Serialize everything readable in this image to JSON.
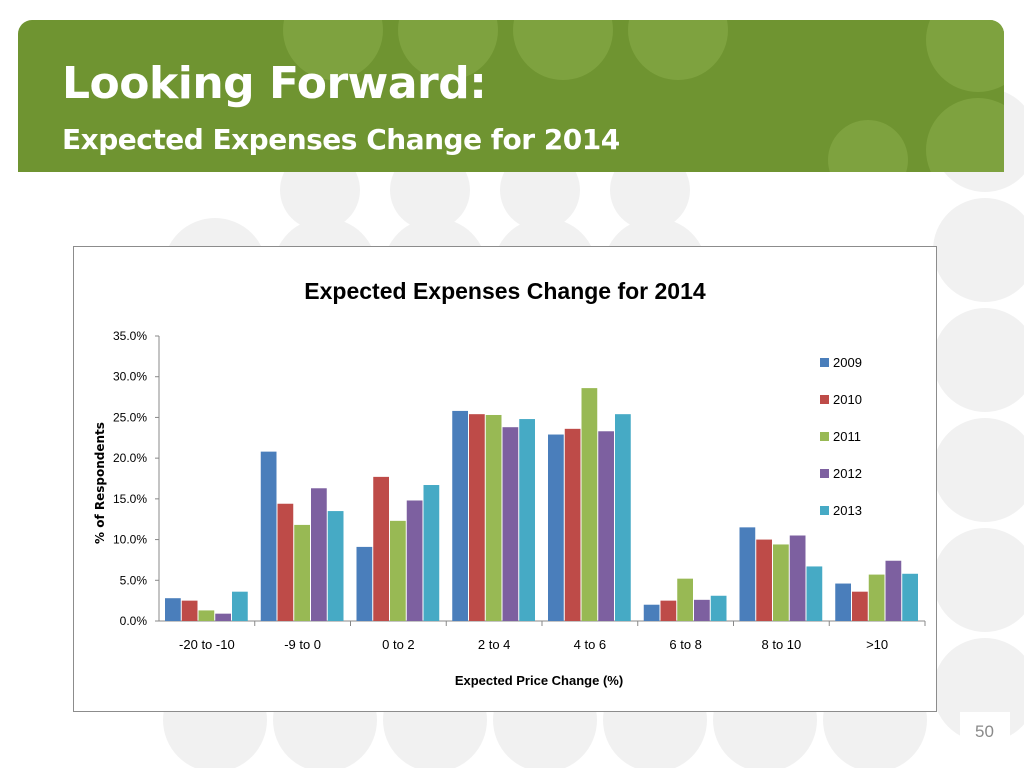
{
  "slide": {
    "title": "Looking Forward:",
    "subtitle": "Expected Expenses Change for 2014",
    "page_number": "50"
  },
  "colors": {
    "banner": "#6f9431",
    "series": [
      "#4a7ebb",
      "#be4b48",
      "#98b954",
      "#7d60a0",
      "#46aac5"
    ]
  },
  "chart_data": {
    "type": "bar",
    "title": "Expected Expenses Change for 2014",
    "xlabel": "Expected Price Change (%)",
    "ylabel": "% of Respondents",
    "categories": [
      "-20 to -10",
      "-9 to 0",
      "0 to 2",
      "2 to 4",
      "4 to 6",
      "6 to 8",
      "8 to 10",
      ">10"
    ],
    "ylim": [
      0,
      35
    ],
    "yticks": [
      "0.0%",
      "5.0%",
      "10.0%",
      "15.0%",
      "20.0%",
      "25.0%",
      "30.0%",
      "35.0%"
    ],
    "grid": false,
    "legend_position": "right",
    "series": [
      {
        "name": "2009",
        "values": [
          2.8,
          20.8,
          9.1,
          25.8,
          22.9,
          2.0,
          11.5,
          4.6
        ]
      },
      {
        "name": "2010",
        "values": [
          2.5,
          14.4,
          17.7,
          25.4,
          23.6,
          2.5,
          10.0,
          3.6
        ]
      },
      {
        "name": "2011",
        "values": [
          1.3,
          11.8,
          12.3,
          25.3,
          28.6,
          5.2,
          9.4,
          5.7
        ]
      },
      {
        "name": "2012",
        "values": [
          0.9,
          16.3,
          14.8,
          23.8,
          23.3,
          2.6,
          10.5,
          7.4
        ]
      },
      {
        "name": "2013",
        "values": [
          3.6,
          13.5,
          16.7,
          24.8,
          25.4,
          3.1,
          6.7,
          5.8
        ]
      }
    ]
  }
}
